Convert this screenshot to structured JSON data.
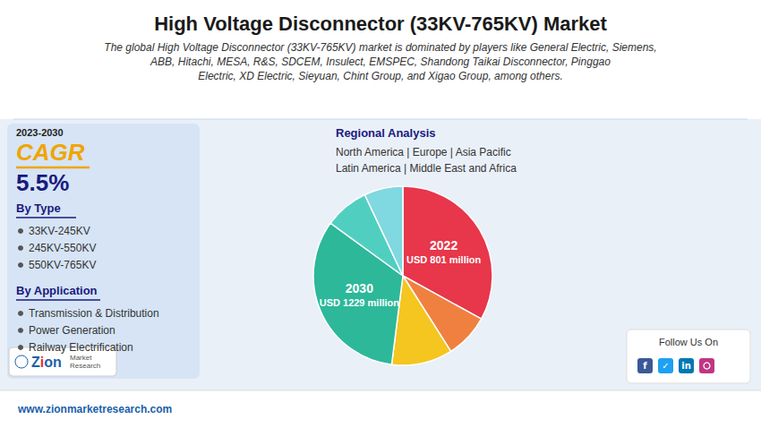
{
  "chart_data": {
    "type": "pie",
    "title": "High Voltage Disconnector (33KV-765KV) Market",
    "subtitle": "The global High Voltage Disconnector (33KV-765KV) market is dominated by players like General Electric, Siemens,\nABB, Hitachi, MESA, R&S, SDCEM, Insulect, EMSPEC, Shandong Taikai Disconnector, Pinggao\nElectric, XD Electric, Sieyuan, Chint Group, and Xigao Group, among others.",
    "categories": [
      "2022\nUSD 801 million",
      null,
      null,
      "2030\nUSD 1229 million",
      null,
      null
    ],
    "values": [
      33,
      8,
      11,
      33,
      8,
      7
    ],
    "colors": [
      "#e8364a",
      "#f08040",
      "#f5c520",
      "#2db89a",
      "#50cfc0",
      "#80d8e0"
    ],
    "annotations": [
      "2023-2030",
      "CAGR",
      "5.5%",
      "By Type",
      "33KV-245KV",
      "245KV-550KV",
      "550KV-765KV",
      "By Application",
      "Transmission & Distribution",
      "Power Generation",
      "Railway Electrification",
      "Regional Analysis",
      "North America | Europe | Asia Pacific\nLatin America | Middle East and Africa",
      "Zion",
      "Market\nResearch",
      "www.zionmarketresearch.com",
      "Follow Us On",
      "f",
      "✓",
      "in"
    ]
  }
}
